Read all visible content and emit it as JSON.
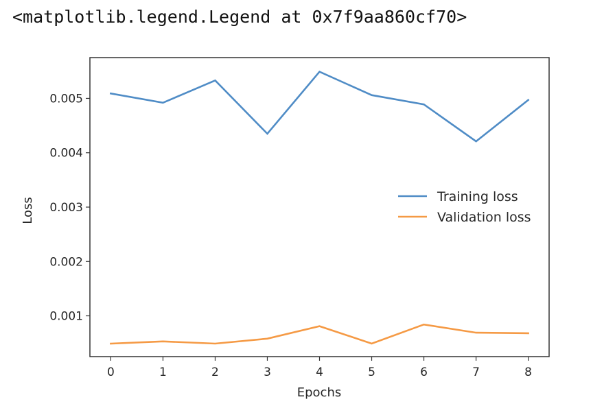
{
  "output": {
    "repr_text": "<matplotlib.legend.Legend at 0x7f9aa860cf70>"
  },
  "chart_data": {
    "type": "line",
    "title": "",
    "xlabel": "Epochs",
    "ylabel": "Loss",
    "x": [
      0,
      1,
      2,
      3,
      4,
      5,
      6,
      7,
      8
    ],
    "xticks": [
      0,
      1,
      2,
      3,
      4,
      5,
      6,
      7,
      8
    ],
    "yticks": [
      0.001,
      0.002,
      0.003,
      0.004,
      0.005
    ],
    "ytick_labels": [
      "0.001",
      "0.002",
      "0.003",
      "0.004",
      "0.005"
    ],
    "xlim": [
      -0.4,
      8.4
    ],
    "ylim": [
      0.00025,
      0.00575
    ],
    "grid": false,
    "legend_position": "right",
    "series": [
      {
        "name": "Training loss",
        "color": "#4f8cc6",
        "values": [
          0.00509,
          0.00492,
          0.00533,
          0.00435,
          0.00549,
          0.00506,
          0.00489,
          0.00421,
          0.00497
        ]
      },
      {
        "name": "Validation loss",
        "color": "#f59a45",
        "values": [
          0.00049,
          0.00053,
          0.00049,
          0.00058,
          0.00081,
          0.00049,
          0.00084,
          0.00069,
          0.00068
        ]
      }
    ]
  }
}
